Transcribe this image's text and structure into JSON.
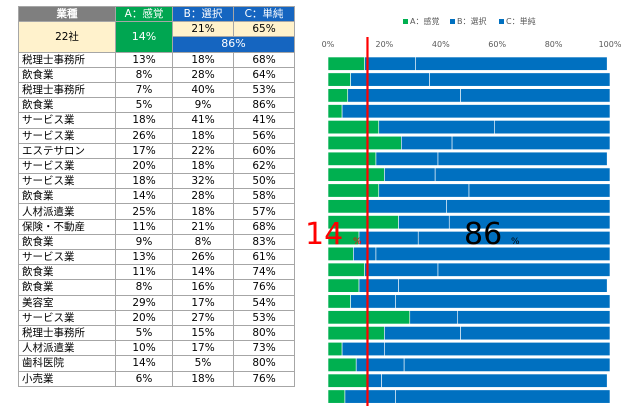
{
  "table": {
    "headers": {
      "business": "業種",
      "a": "A：感覚",
      "b": "B：選択",
      "c": "C：単純"
    },
    "summary": {
      "count": "22社",
      "a": "14%",
      "b": "21%",
      "c": "65%",
      "bc": "86%"
    },
    "rows": [
      [
        "税理士事務所",
        "13%",
        "18%",
        "68%"
      ],
      [
        "飲食業",
        "8%",
        "28%",
        "64%"
      ],
      [
        "税理士事務所",
        "7%",
        "40%",
        "53%"
      ],
      [
        "飲食業",
        "5%",
        "9%",
        "86%"
      ],
      [
        "サービス業",
        "18%",
        "41%",
        "41%"
      ],
      [
        "サービス業",
        "26%",
        "18%",
        "56%"
      ],
      [
        "エステサロン",
        "17%",
        "22%",
        "60%"
      ],
      [
        "サービス業",
        "20%",
        "18%",
        "62%"
      ],
      [
        "サービス業",
        "18%",
        "32%",
        "50%"
      ],
      [
        "飲食業",
        "14%",
        "28%",
        "58%"
      ],
      [
        "人材派遣業",
        "25%",
        "18%",
        "57%"
      ],
      [
        "保険・不動産",
        "11%",
        "21%",
        "68%"
      ],
      [
        "飲食業",
        "9%",
        "8%",
        "83%"
      ],
      [
        "サービス業",
        "13%",
        "26%",
        "61%"
      ],
      [
        "飲食業",
        "11%",
        "14%",
        "74%"
      ],
      [
        "飲食業",
        "8%",
        "16%",
        "76%"
      ],
      [
        "美容室",
        "29%",
        "17%",
        "54%"
      ],
      [
        "サービス業",
        "20%",
        "27%",
        "53%"
      ],
      [
        "税理士事務所",
        "5%",
        "15%",
        "80%"
      ],
      [
        "人材派遣業",
        "10%",
        "17%",
        "73%"
      ],
      [
        "歯科医院",
        "14%",
        "5%",
        "80%"
      ],
      [
        "小売業",
        "6%",
        "18%",
        "76%"
      ]
    ]
  },
  "chart_data": {
    "type": "bar",
    "stacked": true,
    "orientation": "horizontal",
    "percent_axis": true,
    "xlim": [
      0,
      100
    ],
    "x_ticks": [
      "0%",
      "20%",
      "40%",
      "60%",
      "80%",
      "100%"
    ],
    "legend": [
      "A：感覚",
      "B：選択",
      "C：単純"
    ],
    "legend_position": "top",
    "series": [
      {
        "name": "A：感覚",
        "color": "#00b050",
        "values": [
          13,
          8,
          7,
          5,
          18,
          26,
          17,
          20,
          18,
          14,
          25,
          11,
          9,
          13,
          11,
          8,
          29,
          20,
          5,
          10,
          14,
          6
        ]
      },
      {
        "name": "B：選択",
        "color": "#0070c0",
        "values": [
          18,
          28,
          40,
          9,
          41,
          18,
          22,
          18,
          32,
          28,
          18,
          21,
          8,
          26,
          14,
          16,
          17,
          27,
          15,
          17,
          5,
          18
        ]
      },
      {
        "name": "C：単純",
        "color": "#0070c0",
        "values": [
          68,
          64,
          53,
          86,
          41,
          56,
          60,
          62,
          50,
          58,
          57,
          68,
          83,
          61,
          74,
          76,
          54,
          53,
          80,
          73,
          80,
          76
        ]
      }
    ],
    "reference_line": {
      "value": 14,
      "color": "#ff0000"
    },
    "annotations": [
      {
        "value": "14",
        "unit": "%",
        "color": "#ff0000"
      },
      {
        "value": "86",
        "unit": "%",
        "color": "#000000"
      }
    ]
  }
}
